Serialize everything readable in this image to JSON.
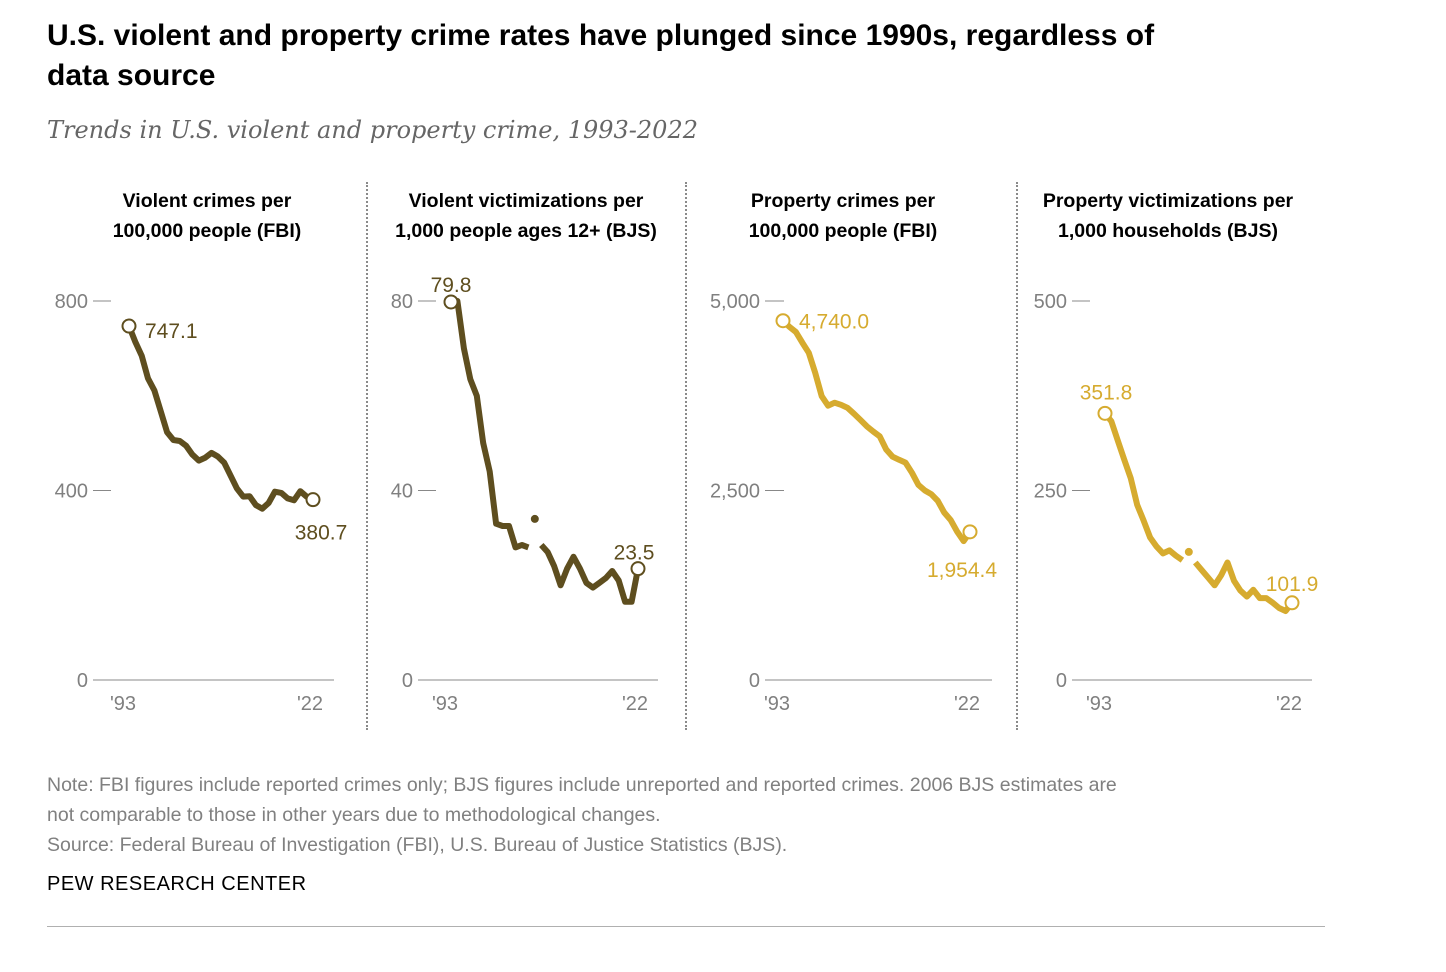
{
  "title": "U.S. violent and property crime rates have plunged since 1990s, regardless of data source",
  "subtitle": "Trends in U.S. violent and property crime, 1993-2022",
  "note_line1": "Note: FBI figures include reported crimes only; BJS figures include unreported and reported crimes. 2006 BJS estimates are",
  "note_line2": "not comparable to those in other years due to methodological changes.",
  "source": "Source: Federal Bureau of Investigation (FBI), U.S. Bureau of Justice Statistics (BJS).",
  "brand": "PEW RESEARCH CENTER",
  "colors": {
    "violent": "#5e4e1f",
    "property": "#d6ab2f",
    "axis": "#888888",
    "text": "#808080"
  },
  "panels": [
    {
      "title_line1": "Violent crimes per",
      "title_line2": "100,000 people (FBI)"
    },
    {
      "title_line1": "Violent victimizations per",
      "title_line2": "1,000 people ages 12+ (BJS)"
    },
    {
      "title_line1": "Property crimes per",
      "title_line2": "100,000 people (FBI)"
    },
    {
      "title_line1": "Property victimizations per",
      "title_line2": "1,000 households (BJS)"
    }
  ],
  "chart_data": [
    {
      "type": "line",
      "title": "Violent crimes per 100,000 people (FBI)",
      "color": "violent",
      "x_tick_labels": [
        "'93",
        "'22"
      ],
      "y_ticks": [
        0,
        400,
        800
      ],
      "y_tick_labels": [
        "0",
        "400",
        "800"
      ],
      "ylim": [
        0,
        800
      ],
      "x": [
        1993,
        1994,
        1995,
        1996,
        1997,
        1998,
        1999,
        2000,
        2001,
        2002,
        2003,
        2004,
        2005,
        2006,
        2007,
        2008,
        2009,
        2010,
        2011,
        2012,
        2013,
        2014,
        2015,
        2016,
        2017,
        2018,
        2019,
        2020,
        2021,
        2022
      ],
      "values": [
        747.1,
        713.6,
        684.5,
        636.6,
        611.0,
        567.6,
        523.0,
        506.5,
        504.5,
        494.4,
        475.8,
        463.2,
        469.0,
        479.3,
        471.8,
        458.6,
        431.9,
        404.5,
        387.1,
        387.8,
        369.1,
        361.6,
        373.7,
        397.5,
        394.9,
        383.4,
        379.4,
        398.5,
        387.0,
        380.7
      ],
      "breaks_after": [],
      "labels": [
        {
          "text": "747.1",
          "index": 0
        },
        {
          "text": "380.7",
          "index": 29
        }
      ]
    },
    {
      "type": "line",
      "title": "Violent victimizations per 1,000 people ages 12+ (BJS)",
      "color": "violent",
      "x_tick_labels": [
        "'93",
        "'22"
      ],
      "y_ticks": [
        0,
        40,
        80
      ],
      "y_tick_labels": [
        "0",
        "40",
        "80"
      ],
      "ylim": [
        0,
        80
      ],
      "x": [
        1993,
        1994,
        1995,
        1996,
        1997,
        1998,
        1999,
        2000,
        2001,
        2002,
        2003,
        2004,
        2005,
        2006,
        2007,
        2008,
        2009,
        2010,
        2011,
        2012,
        2013,
        2014,
        2015,
        2016,
        2017,
        2018,
        2019,
        2020,
        2021,
        2022
      ],
      "values": [
        79.8,
        80.0,
        70.0,
        63.5,
        60.0,
        50.0,
        44.0,
        33.0,
        32.5,
        32.5,
        28.0,
        28.5,
        28.0,
        34.0,
        28.5,
        27.0,
        24.0,
        20.0,
        23.5,
        26.0,
        23.5,
        20.5,
        19.5,
        20.5,
        21.5,
        23.0,
        21.0,
        16.5,
        16.5,
        23.5
      ],
      "breaks_after": [
        12,
        13
      ],
      "labels": [
        {
          "text": "79.8",
          "index": 0
        },
        {
          "text": "23.5",
          "index": 29
        }
      ]
    },
    {
      "type": "line",
      "title": "Property crimes per 100,000 people (FBI)",
      "color": "property",
      "x_tick_labels": [
        "'93",
        "'22"
      ],
      "y_ticks": [
        0,
        2500,
        5000
      ],
      "y_tick_labels": [
        "0",
        "2,500",
        "5,000"
      ],
      "ylim": [
        0,
        5000
      ],
      "x": [
        1993,
        1994,
        1995,
        1996,
        1997,
        1998,
        1999,
        2000,
        2001,
        2002,
        2003,
        2004,
        2005,
        2006,
        2007,
        2008,
        2009,
        2010,
        2011,
        2012,
        2013,
        2014,
        2015,
        2016,
        2017,
        2018,
        2019,
        2020,
        2021,
        2022
      ],
      "values": [
        4740.0,
        4660.2,
        4590.5,
        4451.0,
        4316.3,
        4052.5,
        3743.6,
        3618.3,
        3658.1,
        3630.6,
        3591.2,
        3514.1,
        3431.5,
        3346.6,
        3276.4,
        3214.6,
        3041.3,
        2945.9,
        2905.4,
        2868.0,
        2733.6,
        2574.1,
        2500.5,
        2451.6,
        2362.2,
        2209.8,
        2109.9,
        1958.2,
        1832.3,
        1954.4
      ],
      "breaks_after": [],
      "labels": [
        {
          "text": "4,740.0",
          "index": 0
        },
        {
          "text": "1,954.4",
          "index": 29
        }
      ]
    },
    {
      "type": "line",
      "title": "Property victimizations per 1,000 households (BJS)",
      "color": "property",
      "x_tick_labels": [
        "'93",
        "'22"
      ],
      "y_ticks": [
        0,
        250,
        500
      ],
      "y_tick_labels": [
        "0",
        "250",
        "500"
      ],
      "ylim": [
        0,
        500
      ],
      "x": [
        1993,
        1994,
        1995,
        1996,
        1997,
        1998,
        1999,
        2000,
        2001,
        2002,
        2003,
        2004,
        2005,
        2006,
        2007,
        2008,
        2009,
        2010,
        2011,
        2012,
        2013,
        2014,
        2015,
        2016,
        2017,
        2018,
        2019,
        2020,
        2021,
        2022
      ],
      "values": [
        351.8,
        341.2,
        315.5,
        290.5,
        266.0,
        231.0,
        210.0,
        188.0,
        176.0,
        167.0,
        171.0,
        164.0,
        158.0,
        169.0,
        155.0,
        145.0,
        135.0,
        125.0,
        138.0,
        155.0,
        131.0,
        118.0,
        110.0,
        119.0,
        108.0,
        108.0,
        102.0,
        95.0,
        91.0,
        101.9
      ],
      "breaks_after": [
        12,
        13
      ],
      "labels": [
        {
          "text": "351.8",
          "index": 0
        },
        {
          "text": "101.9",
          "index": 29
        }
      ]
    }
  ]
}
